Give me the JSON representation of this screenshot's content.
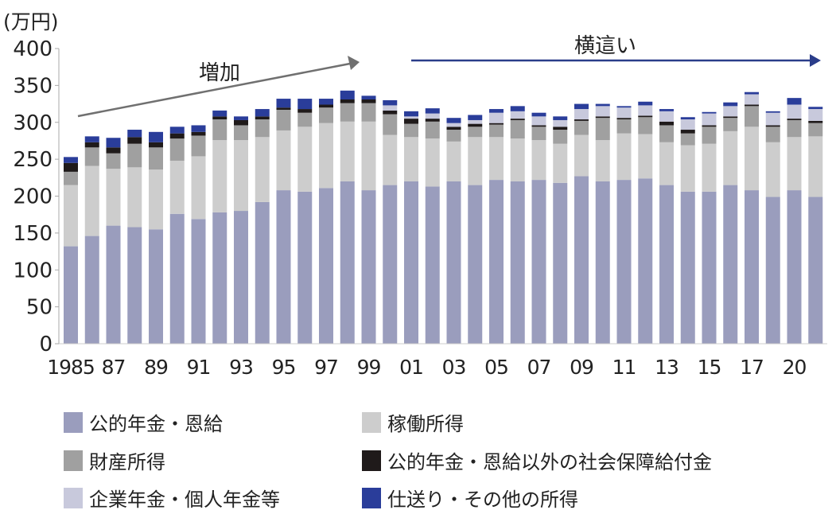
{
  "chart_data": {
    "type": "bar",
    "stacked": true,
    "unit_label": "(万円)",
    "ylim": [
      0,
      400
    ],
    "yticks": [
      0,
      50,
      100,
      150,
      200,
      250,
      300,
      350,
      400
    ],
    "grid": false,
    "categories": [
      "1985",
      "1986",
      "1987",
      "1988",
      "1989",
      "1990",
      "1991",
      "1992",
      "1993",
      "1994",
      "1995",
      "1996",
      "1997",
      "1998",
      "1999",
      "2000",
      "2001",
      "2002",
      "2003",
      "2004",
      "2005",
      "2006",
      "2007",
      "2008",
      "2009",
      "2010",
      "2011",
      "2012",
      "2013",
      "2014",
      "2015",
      "2016",
      "2017",
      "2018",
      "2020",
      "2021"
    ],
    "xtick_labels": [
      {
        "at": "1985",
        "label": "1985"
      },
      {
        "at": "1987",
        "label": "87"
      },
      {
        "at": "1989",
        "label": "89"
      },
      {
        "at": "1991",
        "label": "91"
      },
      {
        "at": "1993",
        "label": "93"
      },
      {
        "at": "1995",
        "label": "95"
      },
      {
        "at": "1997",
        "label": "97"
      },
      {
        "at": "1999",
        "label": "99"
      },
      {
        "at": "2001",
        "label": "01"
      },
      {
        "at": "2003",
        "label": "03"
      },
      {
        "at": "2005",
        "label": "05"
      },
      {
        "at": "2007",
        "label": "07"
      },
      {
        "at": "2009",
        "label": "09"
      },
      {
        "at": "2011",
        "label": "11"
      },
      {
        "at": "2013",
        "label": "13"
      },
      {
        "at": "2015",
        "label": "15"
      },
      {
        "at": "2017",
        "label": "17"
      },
      {
        "at": "2020",
        "label": "20"
      }
    ],
    "series": [
      {
        "name": "公的年金・恩給",
        "color": "#9a9dbd",
        "values": [
          132,
          146,
          160,
          158,
          155,
          176,
          169,
          178,
          180,
          192,
          208,
          206,
          211,
          220,
          208,
          215,
          220,
          213,
          220,
          215,
          222,
          220,
          222,
          218,
          227,
          220,
          222,
          224,
          215,
          206,
          206,
          215,
          208,
          199,
          208,
          199
        ]
      },
      {
        "name": "稼働所得",
        "color": "#cdcdcd",
        "values": [
          83,
          95,
          77,
          81,
          81,
          72,
          85,
          98,
          96,
          88,
          81,
          88,
          88,
          81,
          93,
          68,
          60,
          65,
          54,
          65,
          58,
          58,
          54,
          53,
          56,
          56,
          63,
          60,
          58,
          63,
          65,
          73,
          86,
          74,
          72,
          82
        ]
      },
      {
        "name": "財産所得",
        "color": "#a0a0a0",
        "values": [
          18,
          25,
          21,
          32,
          30,
          30,
          28,
          28,
          20,
          24,
          28,
          19,
          21,
          25,
          25,
          28,
          18,
          23,
          16,
          14,
          17,
          25,
          18,
          19,
          19,
          30,
          19,
          23,
          23,
          16,
          23,
          18,
          28,
          21,
          23,
          18
        ]
      },
      {
        "name": "公的年金・恩給以外の社会保障給付金",
        "color": "#1f1a1a",
        "values": [
          12,
          7,
          8,
          9,
          7,
          7,
          5,
          4,
          7,
          4,
          3,
          5,
          4,
          5,
          5,
          5,
          7,
          4,
          4,
          4,
          2,
          2,
          2,
          4,
          2,
          2,
          2,
          2,
          5,
          5,
          2,
          2,
          2,
          2,
          2,
          3
        ]
      },
      {
        "name": "企業年金・個人年金等",
        "color": "#c8c9dc",
        "values": [
          0,
          0,
          0,
          0,
          0,
          0,
          0,
          0,
          0,
          0,
          0,
          0,
          0,
          0,
          0,
          7,
          3,
          7,
          5,
          5,
          14,
          10,
          12,
          9,
          14,
          14,
          14,
          14,
          14,
          14,
          16,
          14,
          14,
          17,
          19,
          16
        ]
      },
      {
        "name": "仕送り・その他の所得",
        "color": "#2a3d9a",
        "values": [
          8,
          8,
          13,
          10,
          14,
          9,
          9,
          8,
          5,
          10,
          12,
          14,
          8,
          12,
          5,
          7,
          7,
          7,
          7,
          7,
          5,
          7,
          5,
          5,
          7,
          3,
          2,
          5,
          3,
          3,
          2,
          5,
          3,
          2,
          9,
          3
        ]
      }
    ],
    "legend_placement": "bottom",
    "annotations": [
      {
        "text": "増加",
        "arrow_color": "#707070",
        "from": "1985",
        "to": "1999"
      },
      {
        "text": "横這い",
        "arrow_color": "#2a3d8a",
        "from": "2001",
        "to": "2021"
      }
    ]
  }
}
